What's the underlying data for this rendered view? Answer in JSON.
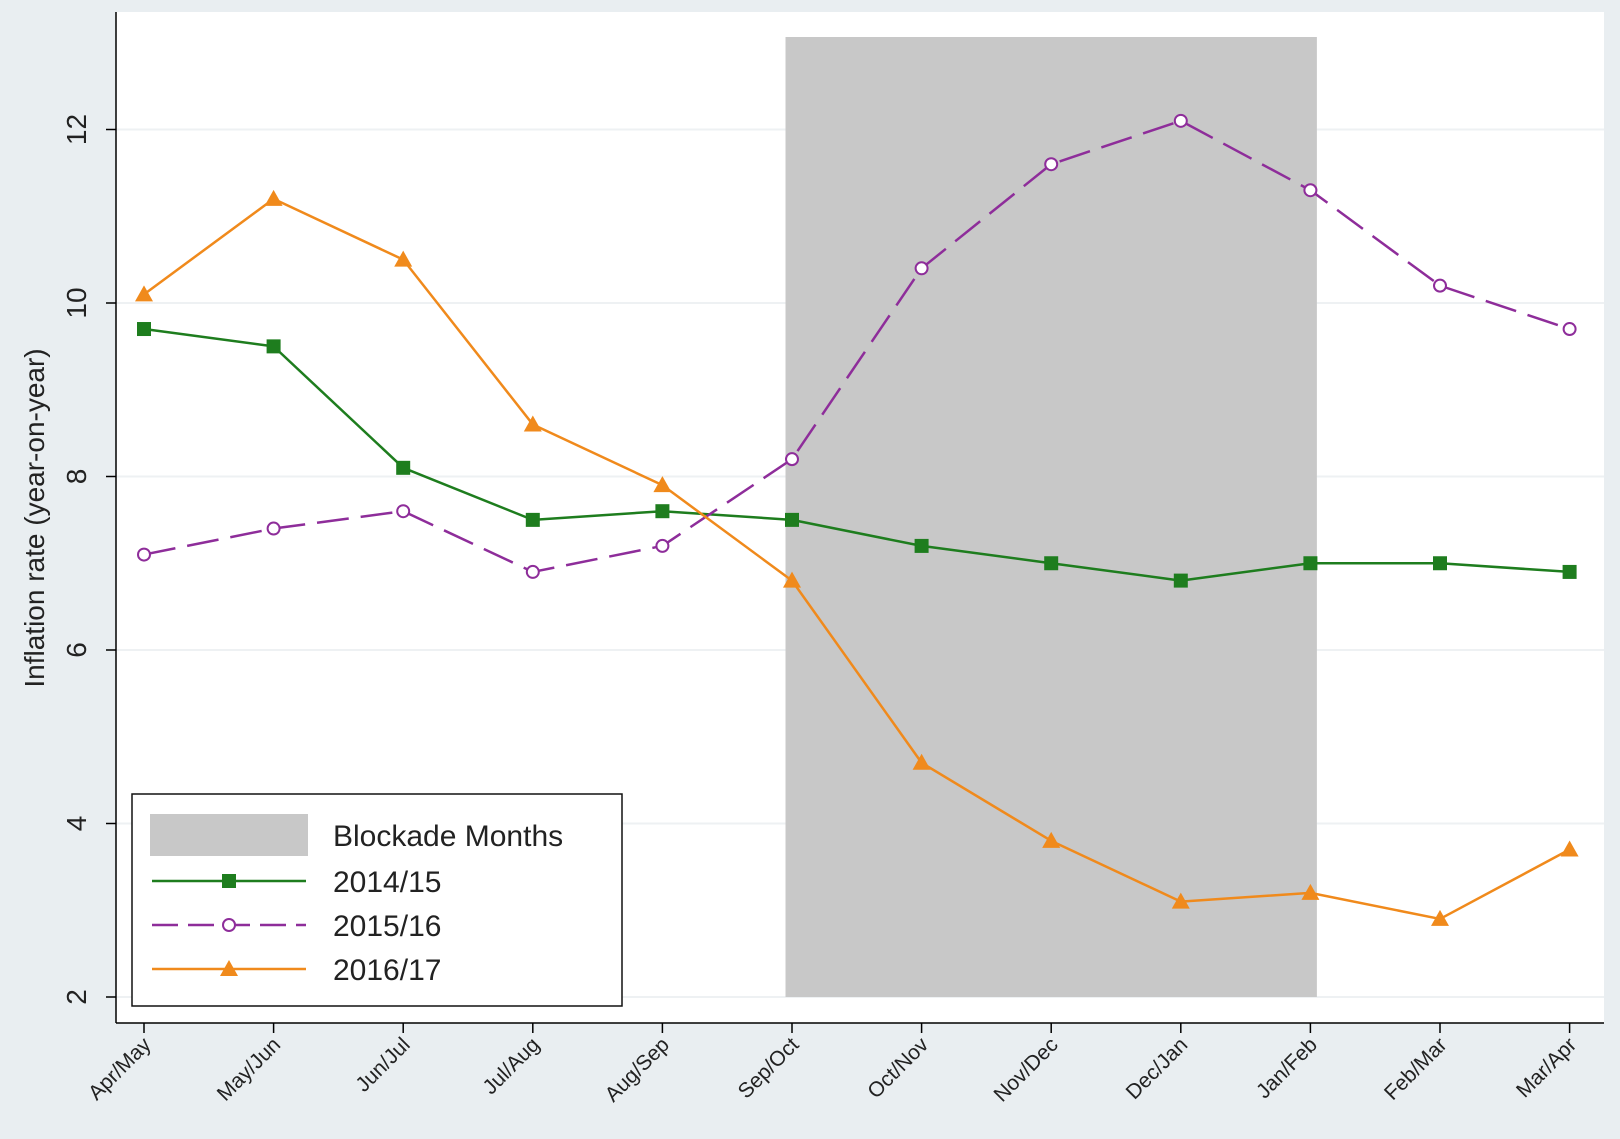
{
  "chart_data": {
    "type": "line",
    "ylabel": "Inflation rate (year-on-year)",
    "xlabel": "",
    "categories": [
      "Apr/May",
      "May/Jun",
      "Jun/Jul",
      "Jul/Aug",
      "Aug/Sep",
      "Sep/Oct",
      "Oct/Nov",
      "Nov/Dec",
      "Dec/Jan",
      "Jan/Feb",
      "Feb/Mar",
      "Mar/Apr"
    ],
    "ylim": [
      2,
      13
    ],
    "yticks": [
      2,
      4,
      6,
      8,
      10,
      12
    ],
    "grid": true,
    "shaded_region": {
      "label": "Blockade Months",
      "x_start": 4.95,
      "x_end": 9.05,
      "color": "#c8c8c8"
    },
    "legend": {
      "placement": "bottom-left"
    },
    "series": [
      {
        "name": "2014/15",
        "color": "#1e7d1e",
        "marker": "square",
        "dash": "solid",
        "values": [
          9.7,
          9.5,
          8.1,
          7.5,
          7.6,
          7.5,
          7.2,
          7.0,
          6.8,
          7.0,
          7.0,
          6.9
        ]
      },
      {
        "name": "2015/16",
        "color": "#8e2d9a",
        "marker": "circle-open",
        "dash": "long-dash",
        "values": [
          7.1,
          7.4,
          7.6,
          6.9,
          7.2,
          8.2,
          10.4,
          11.6,
          12.1,
          11.3,
          10.2,
          9.7
        ]
      },
      {
        "name": "2016/17",
        "color": "#f08a1c",
        "marker": "triangle",
        "dash": "solid",
        "values": [
          10.1,
          11.2,
          10.5,
          8.6,
          7.9,
          6.8,
          4.7,
          3.8,
          3.1,
          3.2,
          2.9,
          3.7
        ]
      }
    ]
  }
}
